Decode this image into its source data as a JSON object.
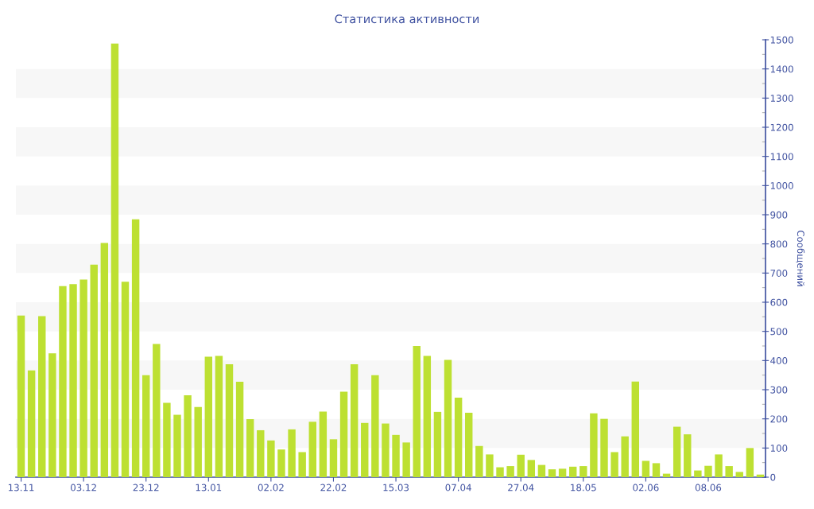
{
  "chart_data": {
    "type": "bar",
    "title": "Статистика активности",
    "ylabel": "Сообщений",
    "categories": [
      "13.11",
      null,
      null,
      null,
      null,
      null,
      "03.12",
      null,
      null,
      null,
      null,
      null,
      "23.12",
      null,
      null,
      null,
      null,
      null,
      "13.01",
      null,
      null,
      null,
      null,
      null,
      "02.02",
      null,
      null,
      null,
      null,
      null,
      "22.02",
      null,
      null,
      null,
      null,
      null,
      "15.03",
      null,
      null,
      null,
      null,
      null,
      "07.04",
      null,
      null,
      null,
      null,
      null,
      "27.04",
      null,
      null,
      null,
      null,
      null,
      "18.05",
      null,
      null,
      null,
      null,
      null,
      "02.06",
      null,
      null,
      null,
      null,
      null,
      "08.06",
      null,
      null,
      null,
      null,
      null
    ],
    "values": [
      554,
      366,
      552,
      425,
      655,
      662,
      678,
      729,
      803,
      1487,
      670,
      884,
      350,
      457,
      255,
      214,
      281,
      241,
      413,
      416,
      387,
      327,
      199,
      161,
      126,
      95,
      164,
      86,
      190,
      225,
      130,
      293,
      387,
      186,
      350,
      184,
      145,
      119,
      450,
      416,
      224,
      402,
      273,
      221,
      107,
      78,
      34,
      38,
      77,
      59,
      42,
      27,
      29,
      36,
      38,
      219,
      200,
      86,
      140,
      328,
      56,
      48,
      12,
      173,
      147,
      23,
      39,
      78,
      38,
      18,
      100,
      9
    ],
    "color": "#bde032",
    "ylim": [
      0,
      1500
    ],
    "yticks": [
      0,
      {
        "value": 50,
        "label": null
      },
      100,
      {
        "value": 150,
        "label": null
      },
      200,
      {
        "value": 250,
        "label": null
      },
      300,
      {
        "value": 350,
        "label": null
      },
      400,
      {
        "value": 450,
        "label": null
      },
      500,
      {
        "value": 550,
        "label": null
      },
      600,
      {
        "value": 650,
        "label": null
      },
      700,
      {
        "value": 750,
        "label": null
      },
      800,
      {
        "value": 850,
        "label": null
      },
      900,
      {
        "value": 950,
        "label": null
      },
      1000,
      {
        "value": 1050,
        "label": null
      },
      1100,
      {
        "value": 1150,
        "label": null
      },
      1200,
      {
        "value": 1250,
        "label": null
      },
      1300,
      {
        "value": 1350,
        "label": null
      },
      1400,
      {
        "value": 1450,
        "label": null
      },
      1500
    ],
    "bands": [
      {
        "axis": "y",
        "from": 100,
        "to": 200,
        "color": "#f7f7f7"
      },
      {
        "axis": "y",
        "from": 300,
        "to": 400,
        "color": "#f7f7f7"
      },
      {
        "axis": "y",
        "from": 500,
        "to": 600,
        "color": "#f7f7f7"
      },
      {
        "axis": "y",
        "from": 700,
        "to": 800,
        "color": "#f7f7f7"
      },
      {
        "axis": "y",
        "from": 900,
        "to": 1000,
        "color": "#f7f7f7"
      },
      {
        "axis": "y",
        "from": 1100,
        "to": 1200,
        "color": "#f7f7f7"
      },
      {
        "axis": "y",
        "from": 1300,
        "to": 1400,
        "color": "#f7f7f7"
      }
    ]
  }
}
